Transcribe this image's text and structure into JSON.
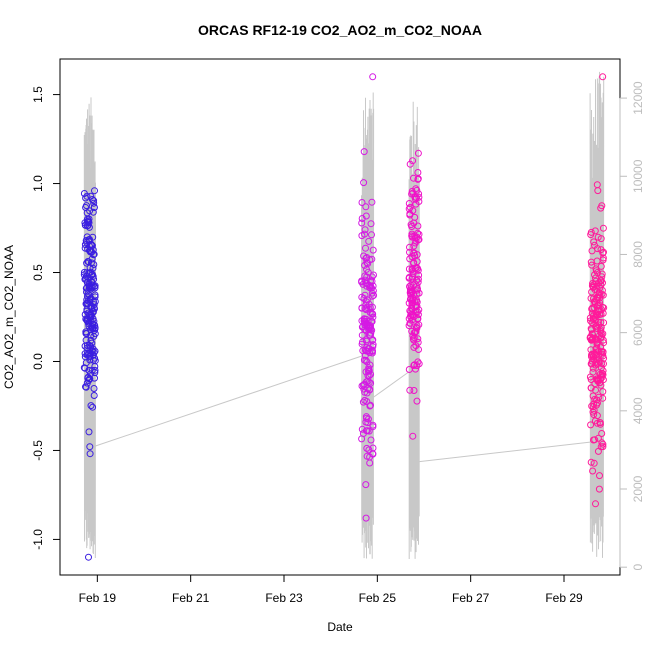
{
  "chart_data": {
    "type": "scatter",
    "title": "ORCAS RF12-19 CO2_AO2_m_CO2_NOAA",
    "xlabel": "Date",
    "ylabel": "CO2_AO2_m_CO2_NOAA",
    "x_ticks": [
      {
        "day": 19,
        "label": "Feb 19"
      },
      {
        "day": 21,
        "label": "Feb 21"
      },
      {
        "day": 23,
        "label": "Feb 23"
      },
      {
        "day": 25,
        "label": "Feb 25"
      },
      {
        "day": 27,
        "label": "Feb 27"
      },
      {
        "day": 29,
        "label": "Feb 29"
      }
    ],
    "xlim": [
      18.2,
      30.2
    ],
    "ylim": [
      -1.2,
      1.7
    ],
    "y_ticks": [
      -1.0,
      -0.5,
      0.0,
      0.5,
      1.0,
      1.5
    ],
    "y_tick_labels": [
      "-1.0",
      "-0.5",
      "0.0",
      "0.5",
      "1.0",
      "1.5"
    ],
    "y2lim": [
      -200,
      13000
    ],
    "y2_ticks": [
      0,
      2000,
      4000,
      6000,
      8000,
      10000,
      12000
    ],
    "y2_tick_labels": [
      "0",
      "2000",
      "4000",
      "6000",
      "8000",
      "10000",
      "12000"
    ],
    "grid": false,
    "colors": {
      "flight1": "#3a1ee0",
      "flight2": "#dd10d0",
      "flight3": "#ff1aa8",
      "altitude_line": "#c8c8c8"
    },
    "series": [
      {
        "x_range": [
          18.72,
          18.96
        ],
        "y_min": -1.1,
        "y_max": 0.96,
        "y_center": 0.3,
        "count": 200,
        "color": "#3a1ee0"
      },
      {
        "x_range": [
          24.66,
          24.92
        ],
        "y_min": -0.88,
        "y_max": 1.6,
        "y_center": 0.15,
        "count": 170,
        "color": "#d41ae4"
      },
      {
        "x_range": [
          25.68,
          25.9
        ],
        "y_min": -0.42,
        "y_max": 1.17,
        "y_center": 0.45,
        "count": 150,
        "color": "#ef12c8"
      },
      {
        "x_range": [
          29.56,
          29.85
        ],
        "y_min": -0.8,
        "y_max": 1.6,
        "y_center": 0.1,
        "count": 220,
        "color": "#ff1a9a"
      }
    ],
    "altitude": {
      "bursts": [
        {
          "x_range": [
            18.72,
            18.96
          ],
          "top": 12100
        },
        {
          "x_range": [
            24.66,
            24.92
          ],
          "top": 12150
        },
        {
          "x_range": [
            25.68,
            25.9
          ],
          "top": 12000
        },
        {
          "x_range": [
            29.56,
            29.85
          ],
          "top": 12700
        }
      ],
      "transits": [
        {
          "x": [
            18.96,
            24.66
          ],
          "y": [
            3100,
            5400
          ]
        },
        {
          "x": [
            24.92,
            25.68
          ],
          "y": [
            4350,
            5000
          ]
        },
        {
          "x": [
            25.9,
            29.56
          ],
          "y": [
            2700,
            3200
          ]
        }
      ]
    }
  }
}
